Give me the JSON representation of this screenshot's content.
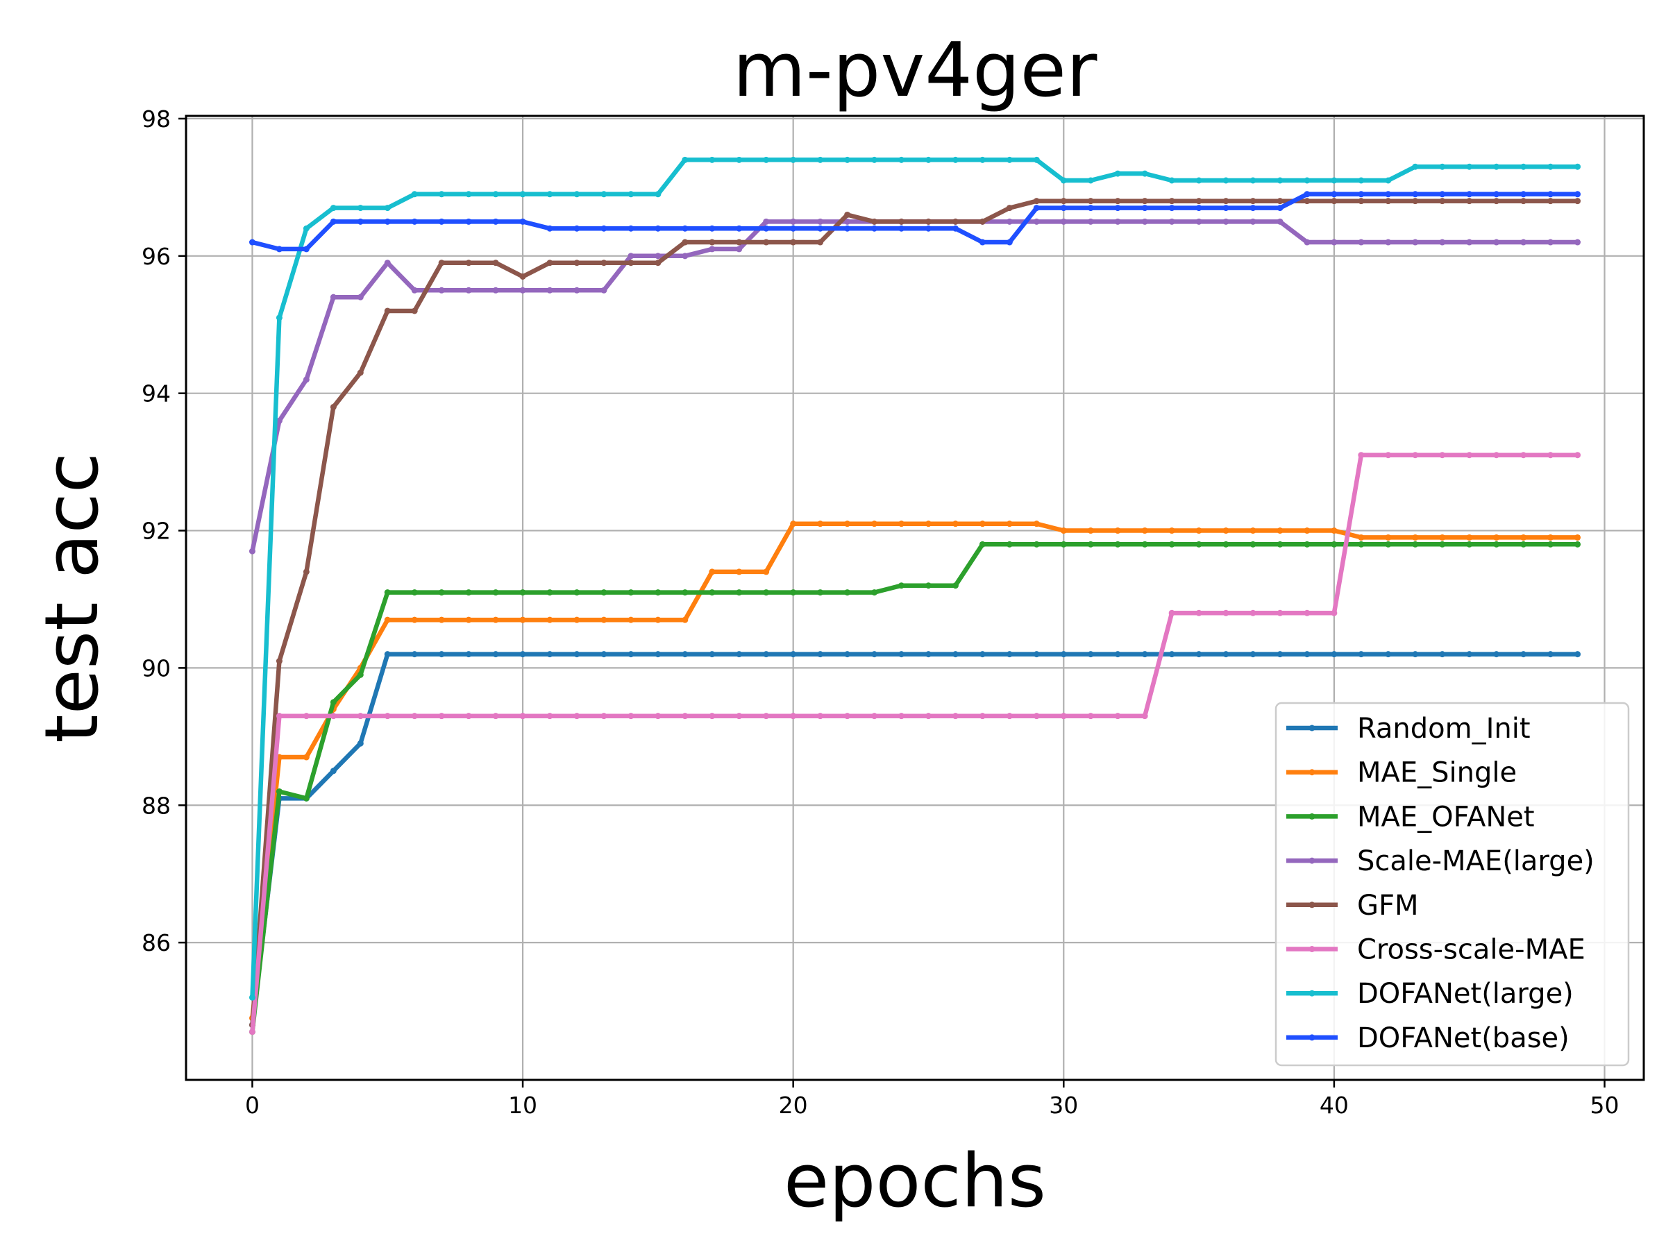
{
  "chart_data": {
    "type": "line",
    "title": "m-pv4ger",
    "xlabel": "epochs",
    "ylabel": "test acc",
    "xlim": [
      -2.45,
      51.45
    ],
    "ylim": [
      84.0,
      98.04
    ],
    "xticks": [
      0,
      10,
      20,
      30,
      40,
      50
    ],
    "yticks": [
      86,
      88,
      90,
      92,
      94,
      96,
      98
    ],
    "x_tick_labels": [
      "0",
      "10",
      "20",
      "30",
      "40",
      "50"
    ],
    "y_tick_labels": [
      "86",
      "88",
      "90",
      "92",
      "94",
      "96",
      "98"
    ],
    "grid": true,
    "legend_position": "lower-right",
    "x": [
      0,
      1,
      2,
      3,
      4,
      5,
      6,
      7,
      8,
      9,
      10,
      11,
      12,
      13,
      14,
      15,
      16,
      17,
      18,
      19,
      20,
      21,
      22,
      23,
      24,
      25,
      26,
      27,
      28,
      29,
      30,
      31,
      32,
      33,
      34,
      35,
      36,
      37,
      38,
      39,
      40,
      41,
      42,
      43,
      44,
      45,
      46,
      47,
      48,
      49
    ],
    "series": [
      {
        "name": "Random_Init",
        "color": "#1f77b4",
        "values": [
          84.8,
          88.1,
          88.1,
          88.5,
          88.9,
          90.2,
          90.2,
          90.2,
          90.2,
          90.2,
          90.2,
          90.2,
          90.2,
          90.2,
          90.2,
          90.2,
          90.2,
          90.2,
          90.2,
          90.2,
          90.2,
          90.2,
          90.2,
          90.2,
          90.2,
          90.2,
          90.2,
          90.2,
          90.2,
          90.2,
          90.2,
          90.2,
          90.2,
          90.2,
          90.2,
          90.2,
          90.2,
          90.2,
          90.2,
          90.2,
          90.2,
          90.2,
          90.2,
          90.2,
          90.2,
          90.2,
          90.2,
          90.2,
          90.2,
          90.2
        ]
      },
      {
        "name": "MAE_Single",
        "color": "#ff7f0e",
        "values": [
          84.9,
          88.7,
          88.7,
          89.4,
          90.0,
          90.7,
          90.7,
          90.7,
          90.7,
          90.7,
          90.7,
          90.7,
          90.7,
          90.7,
          90.7,
          90.7,
          90.7,
          91.4,
          91.4,
          91.4,
          92.1,
          92.1,
          92.1,
          92.1,
          92.1,
          92.1,
          92.1,
          92.1,
          92.1,
          92.1,
          92.0,
          92.0,
          92.0,
          92.0,
          92.0,
          92.0,
          92.0,
          92.0,
          92.0,
          92.0,
          92.0,
          91.9,
          91.9,
          91.9,
          91.9,
          91.9,
          91.9,
          91.9,
          91.9,
          91.9
        ]
      },
      {
        "name": "MAE_OFANet",
        "color": "#2ca02c",
        "values": [
          84.7,
          88.2,
          88.1,
          89.5,
          89.9,
          91.1,
          91.1,
          91.1,
          91.1,
          91.1,
          91.1,
          91.1,
          91.1,
          91.1,
          91.1,
          91.1,
          91.1,
          91.1,
          91.1,
          91.1,
          91.1,
          91.1,
          91.1,
          91.1,
          91.2,
          91.2,
          91.2,
          91.8,
          91.8,
          91.8,
          91.8,
          91.8,
          91.8,
          91.8,
          91.8,
          91.8,
          91.8,
          91.8,
          91.8,
          91.8,
          91.8,
          91.8,
          91.8,
          91.8,
          91.8,
          91.8,
          91.8,
          91.8,
          91.8,
          91.8
        ]
      },
      {
        "name": "Scale-MAE(large)",
        "color": "#9467bd",
        "values": [
          91.7,
          93.6,
          94.2,
          95.4,
          95.4,
          95.9,
          95.5,
          95.5,
          95.5,
          95.5,
          95.5,
          95.5,
          95.5,
          95.5,
          96.0,
          96.0,
          96.0,
          96.1,
          96.1,
          96.5,
          96.5,
          96.5,
          96.5,
          96.5,
          96.5,
          96.5,
          96.5,
          96.5,
          96.5,
          96.5,
          96.5,
          96.5,
          96.5,
          96.5,
          96.5,
          96.5,
          96.5,
          96.5,
          96.5,
          96.2,
          96.2,
          96.2,
          96.2,
          96.2,
          96.2,
          96.2,
          96.2,
          96.2,
          96.2,
          96.2
        ]
      },
      {
        "name": "GFM",
        "color": "#8c564b",
        "values": [
          84.8,
          90.1,
          91.4,
          93.8,
          94.3,
          95.2,
          95.2,
          95.9,
          95.9,
          95.9,
          95.7,
          95.9,
          95.9,
          95.9,
          95.9,
          95.9,
          96.2,
          96.2,
          96.2,
          96.2,
          96.2,
          96.2,
          96.6,
          96.5,
          96.5,
          96.5,
          96.5,
          96.5,
          96.7,
          96.8,
          96.8,
          96.8,
          96.8,
          96.8,
          96.8,
          96.8,
          96.8,
          96.8,
          96.8,
          96.8,
          96.8,
          96.8,
          96.8,
          96.8,
          96.8,
          96.8,
          96.8,
          96.8,
          96.8,
          96.8
        ]
      },
      {
        "name": "Cross-scale-MAE",
        "color": "#e377c2",
        "values": [
          84.7,
          89.3,
          89.3,
          89.3,
          89.3,
          89.3,
          89.3,
          89.3,
          89.3,
          89.3,
          89.3,
          89.3,
          89.3,
          89.3,
          89.3,
          89.3,
          89.3,
          89.3,
          89.3,
          89.3,
          89.3,
          89.3,
          89.3,
          89.3,
          89.3,
          89.3,
          89.3,
          89.3,
          89.3,
          89.3,
          89.3,
          89.3,
          89.3,
          89.3,
          90.8,
          90.8,
          90.8,
          90.8,
          90.8,
          90.8,
          90.8,
          93.1,
          93.1,
          93.1,
          93.1,
          93.1,
          93.1,
          93.1,
          93.1,
          93.1
        ]
      },
      {
        "name": "DOFANet(large)",
        "color": "#17becf",
        "values": [
          85.2,
          95.1,
          96.4,
          96.7,
          96.7,
          96.7,
          96.9,
          96.9,
          96.9,
          96.9,
          96.9,
          96.9,
          96.9,
          96.9,
          96.9,
          96.9,
          97.4,
          97.4,
          97.4,
          97.4,
          97.4,
          97.4,
          97.4,
          97.4,
          97.4,
          97.4,
          97.4,
          97.4,
          97.4,
          97.4,
          97.1,
          97.1,
          97.2,
          97.2,
          97.1,
          97.1,
          97.1,
          97.1,
          97.1,
          97.1,
          97.1,
          97.1,
          97.1,
          97.3,
          97.3,
          97.3,
          97.3,
          97.3,
          97.3,
          97.3
        ]
      },
      {
        "name": "DOFANet(base)",
        "color": "#1f4fff",
        "values": [
          96.2,
          96.1,
          96.1,
          96.5,
          96.5,
          96.5,
          96.5,
          96.5,
          96.5,
          96.5,
          96.5,
          96.4,
          96.4,
          96.4,
          96.4,
          96.4,
          96.4,
          96.4,
          96.4,
          96.4,
          96.4,
          96.4,
          96.4,
          96.4,
          96.4,
          96.4,
          96.4,
          96.2,
          96.2,
          96.7,
          96.7,
          96.7,
          96.7,
          96.7,
          96.7,
          96.7,
          96.7,
          96.7,
          96.7,
          96.9,
          96.9,
          96.9,
          96.9,
          96.9,
          96.9,
          96.9,
          96.9,
          96.9,
          96.9,
          96.9
        ]
      }
    ]
  }
}
